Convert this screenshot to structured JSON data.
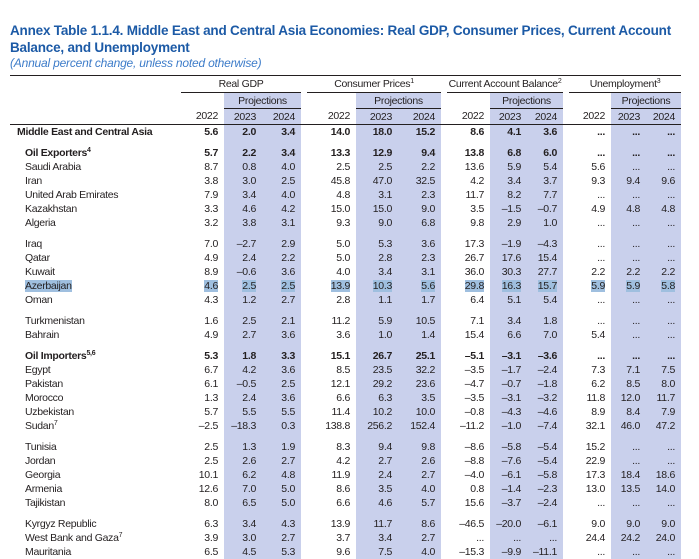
{
  "title": "Annex Table 1.1.4. Middle East and Central Asia Economies: Real GDP, Consumer Prices, Current Account Balance, and Unemployment",
  "subtitle": "(Annual percent change, unless noted otherwise)",
  "colors": {
    "title": "#1c5aa6",
    "projection_shading": "#c9d0ec",
    "selection_highlight": "#9fbfdf"
  },
  "headers": {
    "groups": [
      {
        "label": "Real GDP",
        "sup": ""
      },
      {
        "label": "Consumer Prices",
        "sup": "1"
      },
      {
        "label": "Current Account Balance",
        "sup": "2"
      },
      {
        "label": "Unemployment",
        "sup": "3"
      }
    ],
    "projections": "Projections",
    "years": [
      "2022",
      "2023",
      "2024"
    ]
  },
  "rows": [
    {
      "label": "Middle East and Central Asia",
      "sup": "",
      "bold": true,
      "top": true,
      "v": [
        "5.6",
        "2.0",
        "3.4",
        "14.0",
        "18.0",
        "15.2",
        "8.6",
        "4.1",
        "3.6",
        "...",
        "...",
        "..."
      ]
    },
    {
      "gap": true
    },
    {
      "label": "Oil Exporters",
      "sup": "4",
      "bold": true,
      "v": [
        "5.7",
        "2.2",
        "3.4",
        "13.3",
        "12.9",
        "9.4",
        "13.8",
        "6.8",
        "6.0",
        "...",
        "...",
        "..."
      ]
    },
    {
      "label": "Saudi Arabia",
      "v": [
        "8.7",
        "0.8",
        "4.0",
        "2.5",
        "2.5",
        "2.2",
        "13.6",
        "5.9",
        "5.4",
        "5.6",
        "...",
        "..."
      ]
    },
    {
      "label": "Iran",
      "v": [
        "3.8",
        "3.0",
        "2.5",
        "45.8",
        "47.0",
        "32.5",
        "4.2",
        "3.4",
        "3.7",
        "9.3",
        "9.4",
        "9.6"
      ]
    },
    {
      "label": "United Arab Emirates",
      "v": [
        "7.9",
        "3.4",
        "4.0",
        "4.8",
        "3.1",
        "2.3",
        "11.7",
        "8.2",
        "7.7",
        "...",
        "...",
        "..."
      ]
    },
    {
      "label": "Kazakhstan",
      "v": [
        "3.3",
        "4.6",
        "4.2",
        "15.0",
        "15.0",
        "9.0",
        "3.5",
        "–1.5",
        "–0.7",
        "4.9",
        "4.8",
        "4.8"
      ]
    },
    {
      "label": "Algeria",
      "v": [
        "3.2",
        "3.8",
        "3.1",
        "9.3",
        "9.0",
        "6.8",
        "9.8",
        "2.9",
        "1.0",
        "...",
        "...",
        "..."
      ]
    },
    {
      "gap": true
    },
    {
      "label": "Iraq",
      "v": [
        "7.0",
        "–2.7",
        "2.9",
        "5.0",
        "5.3",
        "3.6",
        "17.3",
        "–1.9",
        "–4.3",
        "...",
        "...",
        "..."
      ]
    },
    {
      "label": "Qatar",
      "v": [
        "4.9",
        "2.4",
        "2.2",
        "5.0",
        "2.8",
        "2.3",
        "26.7",
        "17.6",
        "15.4",
        "...",
        "...",
        "..."
      ]
    },
    {
      "label": "Kuwait",
      "v": [
        "8.9",
        "–0.6",
        "3.6",
        "4.0",
        "3.4",
        "3.1",
        "36.0",
        "30.3",
        "27.7",
        "2.2",
        "2.2",
        "2.2"
      ]
    },
    {
      "label": "Azerbaijan",
      "selected": true,
      "v": [
        "4.6",
        "2.5",
        "2.5",
        "13.9",
        "10.3",
        "5.6",
        "29.8",
        "16.3",
        "15.7",
        "5.9",
        "5.9",
        "5.8"
      ]
    },
    {
      "label": "Oman",
      "v": [
        "4.3",
        "1.2",
        "2.7",
        "2.8",
        "1.1",
        "1.7",
        "6.4",
        "5.1",
        "5.4",
        "...",
        "...",
        "..."
      ]
    },
    {
      "gap": true
    },
    {
      "label": "Turkmenistan",
      "v": [
        "1.6",
        "2.5",
        "2.1",
        "11.2",
        "5.9",
        "10.5",
        "7.1",
        "3.4",
        "1.8",
        "...",
        "...",
        "..."
      ]
    },
    {
      "label": "Bahrain",
      "v": [
        "4.9",
        "2.7",
        "3.6",
        "3.6",
        "1.0",
        "1.4",
        "15.4",
        "6.6",
        "7.0",
        "5.4",
        "...",
        "..."
      ]
    },
    {
      "gap": true
    },
    {
      "label": "Oil Importers",
      "sup": "5,6",
      "bold": true,
      "v": [
        "5.3",
        "1.8",
        "3.3",
        "15.1",
        "26.7",
        "25.1",
        "–5.1",
        "–3.1",
        "–3.6",
        "...",
        "...",
        "..."
      ]
    },
    {
      "label": "Egypt",
      "v": [
        "6.7",
        "4.2",
        "3.6",
        "8.5",
        "23.5",
        "32.2",
        "–3.5",
        "–1.7",
        "–2.4",
        "7.3",
        "7.1",
        "7.5"
      ]
    },
    {
      "label": "Pakistan",
      "v": [
        "6.1",
        "–0.5",
        "2.5",
        "12.1",
        "29.2",
        "23.6",
        "–4.7",
        "–0.7",
        "–1.8",
        "6.2",
        "8.5",
        "8.0"
      ]
    },
    {
      "label": "Morocco",
      "v": [
        "1.3",
        "2.4",
        "3.6",
        "6.6",
        "6.3",
        "3.5",
        "–3.5",
        "–3.1",
        "–3.2",
        "11.8",
        "12.0",
        "11.7"
      ]
    },
    {
      "label": "Uzbekistan",
      "v": [
        "5.7",
        "5.5",
        "5.5",
        "11.4",
        "10.2",
        "10.0",
        "–0.8",
        "–4.3",
        "–4.6",
        "8.9",
        "8.4",
        "7.9"
      ]
    },
    {
      "label": "Sudan",
      "sup": "7",
      "v": [
        "–2.5",
        "–18.3",
        "0.3",
        "138.8",
        "256.2",
        "152.4",
        "–11.2",
        "–1.0",
        "–7.4",
        "32.1",
        "46.0",
        "47.2"
      ]
    },
    {
      "gap": true
    },
    {
      "label": "Tunisia",
      "v": [
        "2.5",
        "1.3",
        "1.9",
        "8.3",
        "9.4",
        "9.8",
        "–8.6",
        "–5.8",
        "–5.4",
        "15.2",
        "...",
        "..."
      ]
    },
    {
      "label": "Jordan",
      "v": [
        "2.5",
        "2.6",
        "2.7",
        "4.2",
        "2.7",
        "2.6",
        "–8.8",
        "–7.6",
        "–5.4",
        "22.9",
        "...",
        "..."
      ]
    },
    {
      "label": "Georgia",
      "v": [
        "10.1",
        "6.2",
        "4.8",
        "11.9",
        "2.4",
        "2.7",
        "–4.0",
        "–6.1",
        "–5.8",
        "17.3",
        "18.4",
        "18.6"
      ]
    },
    {
      "label": "Armenia",
      "v": [
        "12.6",
        "7.0",
        "5.0",
        "8.6",
        "3.5",
        "4.0",
        "0.8",
        "–1.4",
        "–2.3",
        "13.0",
        "13.5",
        "14.0"
      ]
    },
    {
      "label": "Tajikistan",
      "v": [
        "8.0",
        "6.5",
        "5.0",
        "6.6",
        "4.6",
        "5.7",
        "15.6",
        "–3.7",
        "–2.4",
        "...",
        "...",
        "..."
      ]
    },
    {
      "gap": true
    },
    {
      "label": "Kyrgyz Republic",
      "v": [
        "6.3",
        "3.4",
        "4.3",
        "13.9",
        "11.7",
        "8.6",
        "–46.5",
        "–20.0",
        "–6.1",
        "9.0",
        "9.0",
        "9.0"
      ]
    },
    {
      "label": "West Bank and Gaza",
      "sup": "7",
      "v": [
        "3.9",
        "3.0",
        "2.7",
        "3.7",
        "3.4",
        "2.7",
        "...",
        "...",
        "...",
        "24.4",
        "24.2",
        "24.0"
      ]
    },
    {
      "label": "Mauritania",
      "v": [
        "6.5",
        "4.5",
        "5.3",
        "9.6",
        "7.5",
        "4.0",
        "–15.3",
        "–9.9",
        "–11.1",
        "...",
        "...",
        "..."
      ]
    }
  ]
}
